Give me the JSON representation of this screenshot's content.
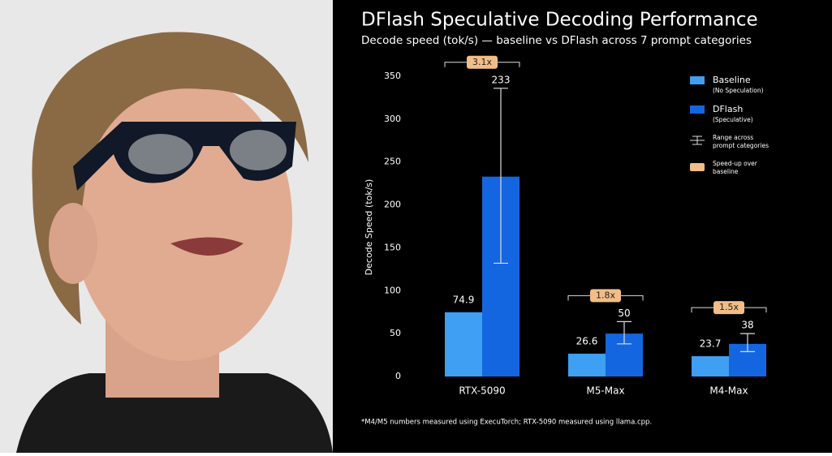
{
  "chart_data": {
    "type": "bar",
    "title": "DFlash Speculative Decoding Performance",
    "subtitle": "Decode speed (tok/s) — baseline vs DFlash across 7 prompt categories",
    "y_label": "Decode Speed (tok/s)",
    "categories": [
      "RTX-5090",
      "M5-Max",
      "M4-Max"
    ],
    "series": [
      {
        "name": "Baseline",
        "note": "(No Speculation)",
        "color": "#3f9ff2",
        "values": [
          74.9,
          26.6,
          23.7
        ]
      },
      {
        "name": "DFlash",
        "note": "(Speculative)",
        "color": "#1466e0",
        "values": [
          233,
          50,
          38
        ],
        "range_low": [
          132,
          38,
          29
        ],
        "range_high": [
          336,
          64,
          50
        ]
      }
    ],
    "range_legend": "Range across prompt categories",
    "speedup_legend": "Speed-up over baseline",
    "speedup": {
      "values": [
        3.1,
        1.8,
        1.5
      ],
      "value_labels": [
        "3.1x",
        "1.8x",
        "1.5x"
      ],
      "color": "#f2bd86"
    },
    "ylim": [
      0,
      350
    ],
    "yticks": [
      0,
      50,
      100,
      150,
      200,
      250,
      300,
      350
    ],
    "footnote": "*M4/M5 numbers measured using ExecuTorch; RTX-5090 measured using llama.cpp."
  }
}
